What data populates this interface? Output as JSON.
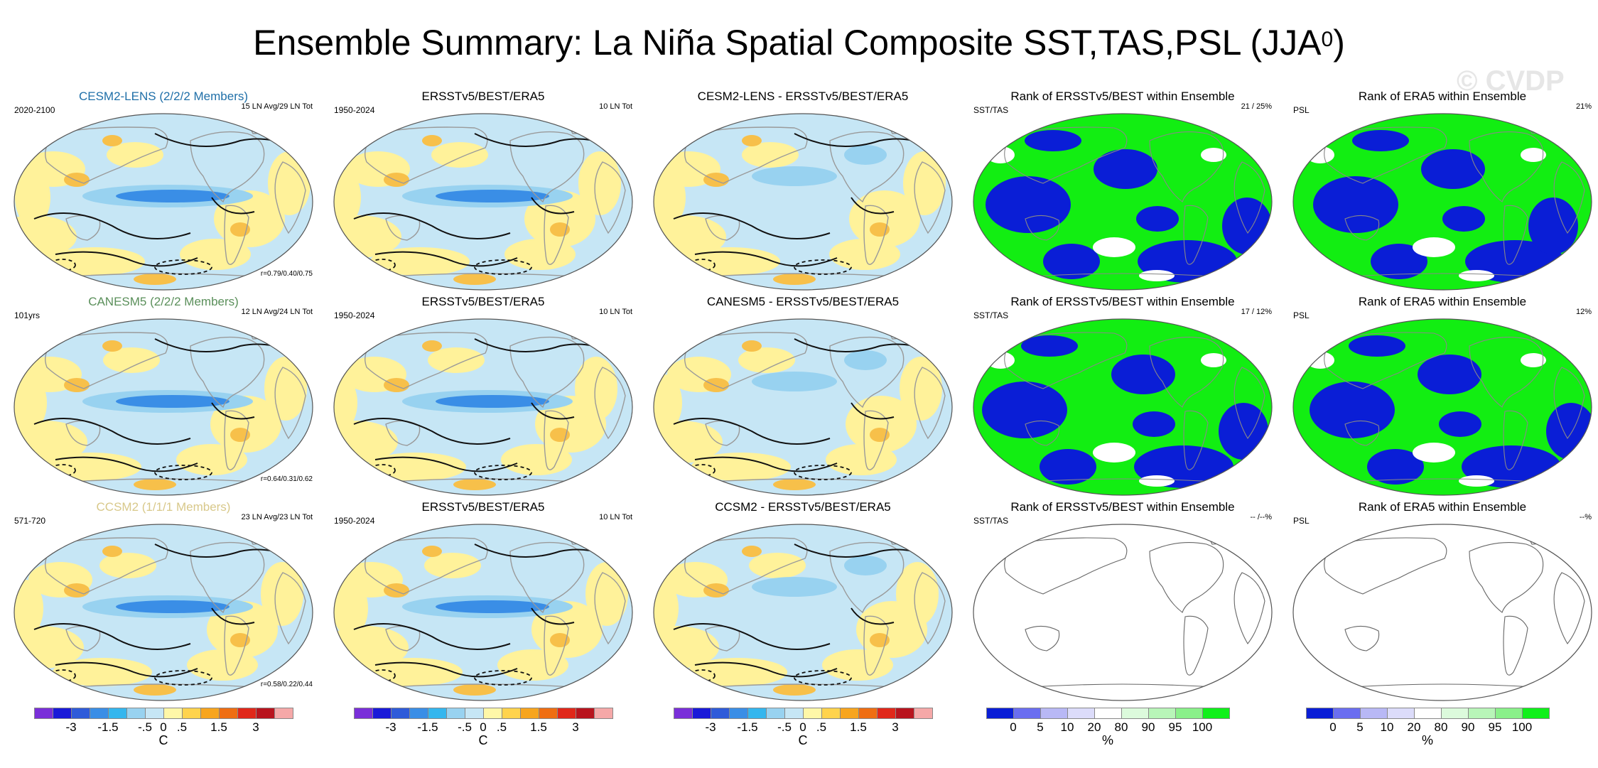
{
  "title": {
    "text": "Ensemble Summary: La Niña Spatial Composite SST,TAS,PSL (JJA",
    "sup": "0",
    "close": ")"
  },
  "watermark": "© CVDP",
  "colors": {
    "temp_scale": [
      "#7a2fd9",
      "#1a1ad8",
      "#2f5bd9",
      "#3a8ee6",
      "#34b6ee",
      "#98d2f0",
      "#c6e6f5",
      "#fff7a8",
      "#ffd34d",
      "#f7a51e",
      "#ef6e12",
      "#e0281a",
      "#b8141e",
      "#f5a8a8"
    ],
    "rank_scale": [
      "#0a1ed6",
      "#6a6ef0",
      "#b8b8f5",
      "#dcdcfa",
      "#ffffff",
      "#dcfadc",
      "#b8f5b8",
      "#8af08a",
      "#0ff01a"
    ],
    "rank_low": "#0a1ed6",
    "rank_high": "#12ee12",
    "ocean_base": "#c6e6f5",
    "warm": "#fff29a",
    "cool_core": "#3a8ee6",
    "contour": "#111111",
    "coast": "#9a9a9a"
  },
  "rows": [
    {
      "model": {
        "title": "CESM2-LENS (2/2/2 Members)",
        "title_color": "#1f6fa8",
        "left": "2020-2100",
        "right": "15 LN Avg/29 LN Tot",
        "corr": "r=0.79/0.40/0.75"
      },
      "obs": {
        "title": "ERSSTv5/BEST/ERA5",
        "left": "1950-2024",
        "right": "10 LN Tot"
      },
      "diff": {
        "title": "CESM2-LENS - ERSSTv5/BEST/ERA5"
      },
      "rank1": {
        "title": "Rank of ERSSTv5/BEST within Ensemble",
        "left": "SST/TAS",
        "right": "21 /  25%",
        "filled": true
      },
      "rank2": {
        "title": "Rank of ERA5 within Ensemble",
        "left": "PSL",
        "right": "21%",
        "filled": true
      }
    },
    {
      "model": {
        "title": "CANESM5 (2/2/2 Members)",
        "title_color": "#5a8f5a",
        "left": "101yrs",
        "right": "12 LN Avg/24 LN Tot",
        "corr": "r=0.64/0.31/0.62"
      },
      "obs": {
        "title": "ERSSTv5/BEST/ERA5",
        "left": "1950-2024",
        "right": "10 LN Tot"
      },
      "diff": {
        "title": "CANESM5 - ERSSTv5/BEST/ERA5"
      },
      "rank1": {
        "title": "Rank of ERSSTv5/BEST within Ensemble",
        "left": "SST/TAS",
        "right": "17 /  12%",
        "filled": true
      },
      "rank2": {
        "title": "Rank of ERA5 within Ensemble",
        "left": "PSL",
        "right": "12%",
        "filled": true
      }
    },
    {
      "model": {
        "title": "CCSM2 (1/1/1 Members)",
        "title_color": "#d8c88a",
        "left": "571-720",
        "right": "23 LN Avg/23 LN Tot",
        "corr": "r=0.58/0.22/0.44"
      },
      "obs": {
        "title": "ERSSTv5/BEST/ERA5",
        "left": "1950-2024",
        "right": "10 LN Tot"
      },
      "diff": {
        "title": "CCSM2 - ERSSTv5/BEST/ERA5"
      },
      "rank1": {
        "title": "Rank of ERSSTv5/BEST within Ensemble",
        "left": "SST/TAS",
        "right": "-- /--%",
        "filled": false
      },
      "rank2": {
        "title": "Rank of ERA5 within Ensemble",
        "left": "PSL",
        "right": "--%",
        "filled": false
      }
    }
  ],
  "colorbars": {
    "temp": {
      "ticks": [
        "-3",
        "-1.5",
        "-.5",
        "0",
        ".5",
        "1.5",
        "3"
      ],
      "unit": "C"
    },
    "rank": {
      "ticks": [
        "0",
        "5",
        "10",
        "20",
        "80",
        "90",
        "95",
        "100"
      ],
      "unit": "%"
    }
  }
}
